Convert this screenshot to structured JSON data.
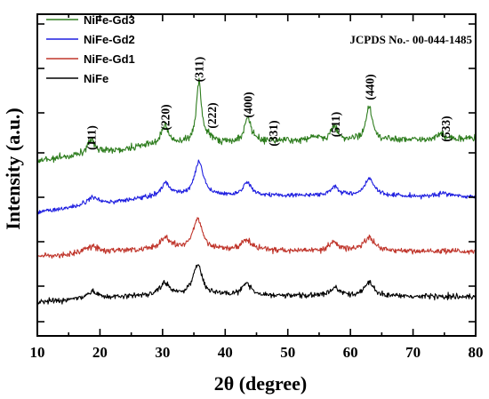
{
  "chart_data": {
    "type": "line",
    "xlabel": "2θ (degree)",
    "ylabel": "Intensity (a.u.)",
    "xlim": [
      10,
      80
    ],
    "x_ticks": [
      "10",
      "20",
      "30",
      "40",
      "50",
      "60",
      "70",
      "80"
    ],
    "annotation": "JCPDS No.- 00-044-1485",
    "legend_position": "top-left",
    "peak_labels": [
      {
        "hkl": "(111)",
        "x": 18.6
      },
      {
        "hkl": "(220)",
        "x": 30.4
      },
      {
        "hkl": "(311)",
        "x": 35.8
      },
      {
        "hkl": "(222)",
        "x": 37.8
      },
      {
        "hkl": "(400)",
        "x": 43.6
      },
      {
        "hkl": "(331)",
        "x": 47.6
      },
      {
        "hkl": "(511)",
        "x": 57.6
      },
      {
        "hkl": "(440)",
        "x": 63.0
      },
      {
        "hkl": "(533)",
        "x": 75.2
      }
    ],
    "series": [
      {
        "name": "NiFe-Gd3",
        "color": "#2e7d1e",
        "baseline": [
          [
            10,
            181
          ],
          [
            30,
            162
          ],
          [
            50,
            158
          ],
          [
            80,
            156
          ]
        ],
        "peaks": [
          {
            "x": 18.6,
            "h": 14,
            "w": 0.8
          },
          {
            "x": 30.4,
            "h": 22,
            "w": 0.6
          },
          {
            "x": 35.8,
            "h": 68,
            "w": 0.5
          },
          {
            "x": 37.3,
            "h": 6,
            "w": 0.4
          },
          {
            "x": 43.6,
            "h": 27,
            "w": 0.6
          },
          {
            "x": 54.2,
            "h": 5,
            "w": 0.5
          },
          {
            "x": 57.4,
            "h": 17,
            "w": 0.55
          },
          {
            "x": 63.0,
            "h": 38,
            "w": 0.6
          },
          {
            "x": 74.6,
            "h": 5,
            "w": 0.7
          }
        ],
        "noise": 2.0
      },
      {
        "name": "NiFe-Gd2",
        "color": "#1f1fe0",
        "baseline": [
          [
            10,
            239
          ],
          [
            30,
            221
          ],
          [
            50,
            220
          ],
          [
            80,
            221
          ]
        ],
        "peaks": [
          {
            "x": 18.8,
            "h": 9,
            "w": 1.2
          },
          {
            "x": 30.5,
            "h": 14,
            "w": 0.9
          },
          {
            "x": 35.8,
            "h": 38,
            "w": 0.85
          },
          {
            "x": 43.5,
            "h": 15,
            "w": 0.8
          },
          {
            "x": 57.5,
            "h": 10,
            "w": 0.8
          },
          {
            "x": 63.0,
            "h": 19,
            "w": 0.9
          },
          {
            "x": 75.0,
            "h": 3,
            "w": 1.0
          }
        ],
        "noise": 1.3
      },
      {
        "name": "NiFe-Gd1",
        "color": "#c0362c",
        "baseline": [
          [
            10,
            289
          ],
          [
            30,
            280
          ],
          [
            50,
            282
          ],
          [
            80,
            283
          ]
        ],
        "peaks": [
          {
            "x": 18.8,
            "h": 7,
            "w": 1.3
          },
          {
            "x": 30.4,
            "h": 11,
            "w": 1.0
          },
          {
            "x": 35.6,
            "h": 34,
            "w": 0.9
          },
          {
            "x": 43.4,
            "h": 12,
            "w": 0.9
          },
          {
            "x": 57.4,
            "h": 9,
            "w": 0.9
          },
          {
            "x": 63.0,
            "h": 15,
            "w": 1.0
          }
        ],
        "noise": 1.7
      },
      {
        "name": "NiFe",
        "color": "#000000",
        "baseline": [
          [
            10,
            340
          ],
          [
            30,
            332
          ],
          [
            50,
            333
          ],
          [
            80,
            334
          ]
        ],
        "peaks": [
          {
            "x": 18.8,
            "h": 8,
            "w": 1.2
          },
          {
            "x": 30.4,
            "h": 13,
            "w": 0.9
          },
          {
            "x": 35.6,
            "h": 35,
            "w": 0.85
          },
          {
            "x": 43.4,
            "h": 14,
            "w": 0.85
          },
          {
            "x": 57.5,
            "h": 9,
            "w": 0.9
          },
          {
            "x": 63.0,
            "h": 15,
            "w": 0.95
          }
        ],
        "noise": 1.6
      }
    ]
  }
}
